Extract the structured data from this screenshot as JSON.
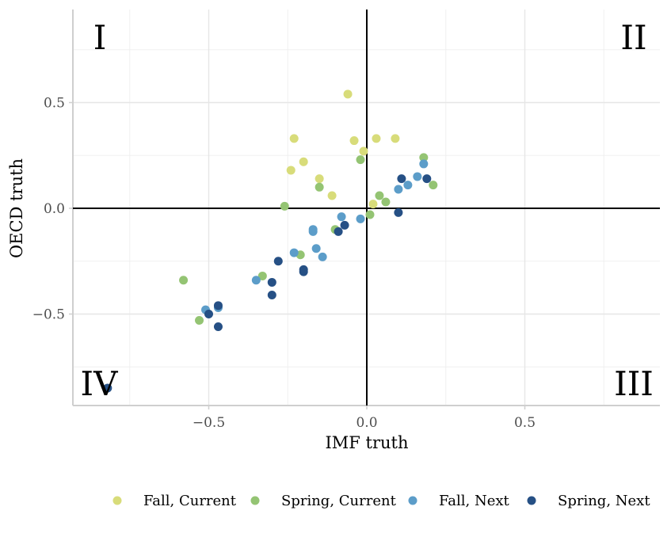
{
  "chart_data": {
    "type": "scatter",
    "xlabel": "IMF truth",
    "ylabel": "OECD truth",
    "xlim": [
      -0.93,
      0.93
    ],
    "ylim": [
      -0.93,
      0.93
    ],
    "x_ticks": [
      -0.5,
      0.0,
      0.5
    ],
    "x_tick_labels": [
      "−0.5",
      "0.0",
      "0.5"
    ],
    "y_ticks": [
      -0.5,
      0.0,
      0.5
    ],
    "y_tick_labels": [
      "−0.5",
      "0.0",
      "0.5"
    ],
    "grid": true,
    "legend_position": "bottom",
    "quadrant_labels": [
      "I",
      "II",
      "III",
      "IV"
    ],
    "series": [
      {
        "name": "Fall, Current",
        "color": "#d8dc7a",
        "points": [
          [
            -0.06,
            0.54
          ],
          [
            -0.23,
            0.33
          ],
          [
            -0.04,
            0.32
          ],
          [
            0.03,
            0.33
          ],
          [
            0.09,
            0.33
          ],
          [
            -0.01,
            0.27
          ],
          [
            -0.2,
            0.22
          ],
          [
            -0.24,
            0.18
          ],
          [
            -0.15,
            0.14
          ],
          [
            -0.11,
            0.06
          ],
          [
            0.02,
            0.02
          ]
        ]
      },
      {
        "name": "Spring, Current",
        "color": "#94c473",
        "points": [
          [
            -0.02,
            0.23
          ],
          [
            0.18,
            0.24
          ],
          [
            0.21,
            0.11
          ],
          [
            -0.15,
            0.1
          ],
          [
            0.04,
            0.06
          ],
          [
            0.06,
            0.03
          ],
          [
            -0.26,
            0.01
          ],
          [
            0.01,
            -0.03
          ],
          [
            -0.1,
            -0.1
          ],
          [
            -0.21,
            -0.22
          ],
          [
            -0.33,
            -0.32
          ],
          [
            -0.58,
            -0.34
          ],
          [
            -0.53,
            -0.53
          ]
        ]
      },
      {
        "name": "Fall, Next",
        "color": "#5c9dc9",
        "points": [
          [
            0.18,
            0.21
          ],
          [
            0.16,
            0.15
          ],
          [
            0.13,
            0.11
          ],
          [
            0.1,
            0.09
          ],
          [
            -0.08,
            -0.04
          ],
          [
            -0.02,
            -0.05
          ],
          [
            -0.17,
            -0.1
          ],
          [
            -0.17,
            -0.11
          ],
          [
            -0.16,
            -0.19
          ],
          [
            -0.14,
            -0.23
          ],
          [
            -0.23,
            -0.21
          ],
          [
            -0.35,
            -0.34
          ],
          [
            -0.47,
            -0.47
          ],
          [
            -0.51,
            -0.48
          ]
        ]
      },
      {
        "name": "Spring, Next",
        "color": "#265085",
        "points": [
          [
            0.11,
            0.14
          ],
          [
            0.19,
            0.14
          ],
          [
            0.1,
            -0.02
          ],
          [
            -0.07,
            -0.08
          ],
          [
            -0.09,
            -0.11
          ],
          [
            -0.28,
            -0.25
          ],
          [
            -0.2,
            -0.29
          ],
          [
            -0.2,
            -0.3
          ],
          [
            -0.3,
            -0.35
          ],
          [
            -0.3,
            -0.41
          ],
          [
            -0.47,
            -0.46
          ],
          [
            -0.5,
            -0.5
          ],
          [
            -0.47,
            -0.56
          ],
          [
            -0.82,
            -0.85
          ]
        ]
      }
    ]
  }
}
